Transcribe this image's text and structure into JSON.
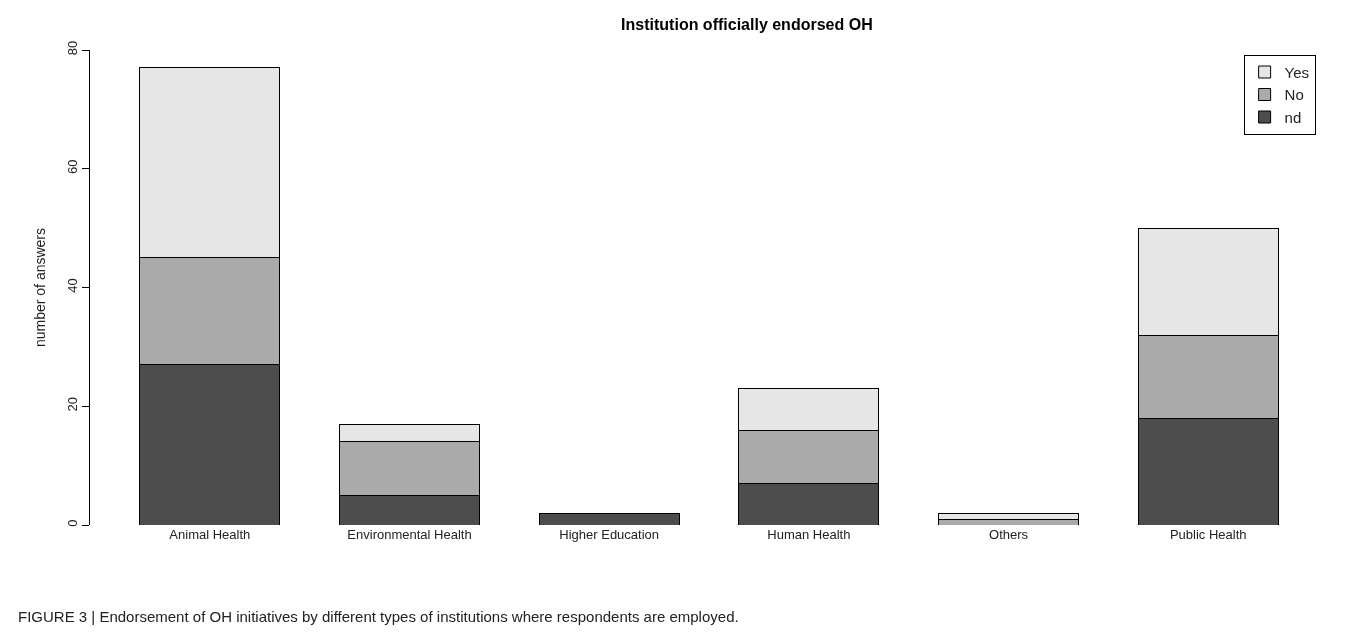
{
  "chart_data": {
    "type": "bar",
    "title": "Institution officially endorsed OH",
    "ylabel": "number of answers",
    "categories": [
      "Animal Health",
      "Environmental Health",
      "Higher Education",
      "Human Health",
      "Others",
      "Public Health"
    ],
    "stacked": true,
    "series": [
      {
        "name": "nd",
        "color": "#4d4d4d",
        "values": [
          27,
          5,
          2,
          7,
          0,
          18
        ]
      },
      {
        "name": "No",
        "color": "#aaaaaa",
        "values": [
          18,
          9,
          0,
          9,
          1,
          14
        ]
      },
      {
        "name": "Yes",
        "color": "#e6e6e6",
        "values": [
          32,
          3,
          0,
          7,
          1,
          18
        ]
      }
    ],
    "ylim": [
      0,
      80
    ],
    "yticks": [
      0,
      20,
      40,
      60,
      80
    ],
    "legend": "top right",
    "annotations": [
      "FIGURE 3 | Endorsement of OH initiatives by different types of institutions where respondents are employed."
    ]
  }
}
